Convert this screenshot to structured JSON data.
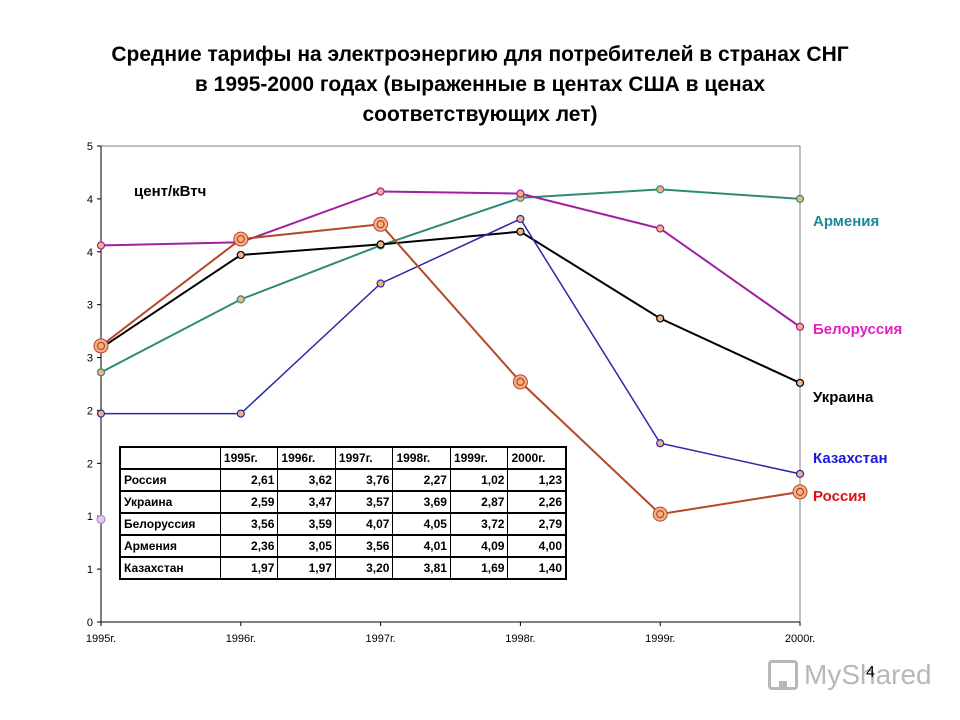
{
  "chart_data": {
    "type": "line",
    "title_lines": [
      "Средние тарифы на электроэнергию для потребителей в странах СНГ",
      "в 1995-2000 годах (выраженные в центах США в ценах",
      "соответствующих лет)"
    ],
    "unit_label": "цент/кВтч",
    "categories": [
      "1995г.",
      "1996г.",
      "1997г.",
      "1998г.",
      "1999г.",
      "2000г."
    ],
    "y_ticks": [
      "0",
      "1",
      "1",
      "2",
      "2",
      "3",
      "3",
      "4",
      "4",
      "5"
    ],
    "ylim": [
      0,
      4.5
    ],
    "grid": false,
    "series": [
      {
        "name": "Армения",
        "color": "#2e8b7a",
        "values": [
          2.36,
          3.05,
          3.56,
          4.01,
          4.09,
          4.0
        ],
        "big_markers": [
          false,
          false,
          false,
          false,
          false,
          false
        ]
      },
      {
        "name": "Белоруссия",
        "color": "#a020a0",
        "values": [
          3.56,
          3.59,
          4.07,
          4.05,
          3.72,
          2.79
        ],
        "big_markers": [
          false,
          false,
          false,
          false,
          false,
          false
        ]
      },
      {
        "name": "Украина",
        "color": "#000000",
        "values": [
          2.59,
          3.47,
          3.57,
          3.69,
          2.87,
          2.26
        ],
        "big_markers": [
          false,
          false,
          false,
          false,
          false,
          false
        ]
      },
      {
        "name": "Казахстан",
        "color": "#2a2aa8",
        "values": [
          1.97,
          1.97,
          3.2,
          3.81,
          1.69,
          1.4
        ],
        "big_markers": [
          false,
          false,
          false,
          false,
          false,
          false
        ]
      },
      {
        "name": "Россия",
        "color": "#b5482a",
        "values": [
          2.61,
          3.62,
          3.76,
          2.27,
          1.02,
          1.23
        ],
        "big_markers": [
          true,
          true,
          true,
          true,
          true,
          true
        ]
      }
    ],
    "series_label_colors": {
      "Армения": "#1a8a9a",
      "Белоруссия": "#e020c0",
      "Украина": "#000000",
      "Казахстан": "#1a1ad8",
      "Россия": "#e01010"
    },
    "table": {
      "header": [
        "1995г.",
        "1996г.",
        "1997г.",
        "1998г.",
        "1999г.",
        "2000г."
      ],
      "rows": [
        {
          "name": "Россия",
          "values": [
            "2,61",
            "3,62",
            "3,76",
            "2,27",
            "1,02",
            "1,23"
          ]
        },
        {
          "name": "Украина",
          "values": [
            "2,59",
            "3,47",
            "3,57",
            "3,69",
            "2,87",
            "2,26"
          ]
        },
        {
          "name": "Белоруссия",
          "values": [
            "3,56",
            "3,59",
            "4,07",
            "4,05",
            "3,72",
            "2,79"
          ]
        },
        {
          "name": "Армения",
          "values": [
            "2,36",
            "3,05",
            "3,56",
            "4,01",
            "4,09",
            "4,00"
          ]
        },
        {
          "name": "Казахстан",
          "values": [
            "1,97",
            "1,97",
            "3,20",
            "3,81",
            "1,69",
            "1,40"
          ]
        }
      ]
    }
  },
  "watermark": {
    "text": "MyShared",
    "page_number": "4"
  }
}
